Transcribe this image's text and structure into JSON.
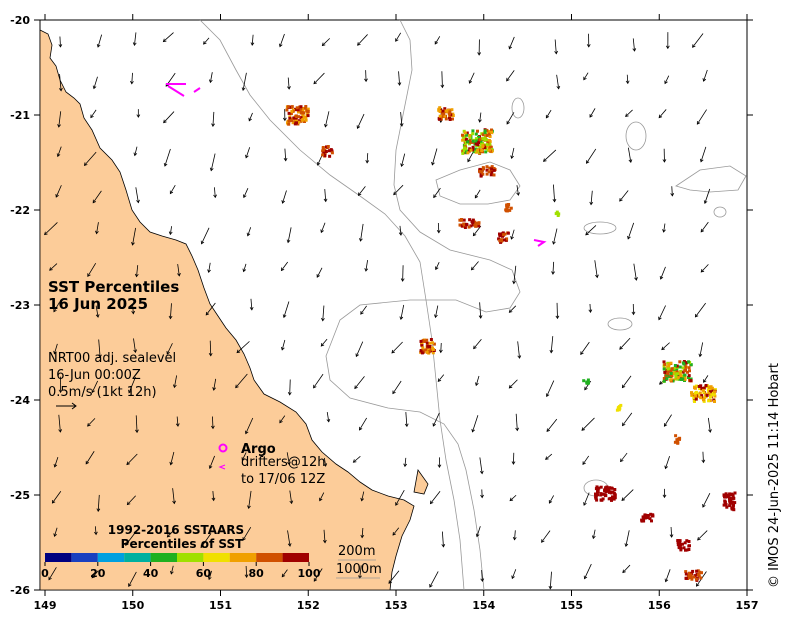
{
  "map": {
    "title_line1": "SST Percentiles",
    "title_line2": "16 Jun 2025",
    "current_line1": "NRT00 adj. sealevel",
    "current_line2": "16-Jun 00:00Z",
    "current_line3": "0.5m/s (1kt 12h)",
    "argo_label": "Argo",
    "drifter_line1": "drifters@12h",
    "drifter_line2": "to 17/06 12Z",
    "legend_title1": "1992-2016 SSTAARS",
    "legend_title2": "Percentiles of SST",
    "legend_ticks": [
      "0",
      "20",
      "40",
      "60",
      "80",
      "100"
    ],
    "legend_colors": [
      "#000080",
      "#1a40c0",
      "#00a0e0",
      "#00b0a0",
      "#20b020",
      "#a0e000",
      "#f0e000",
      "#f0a000",
      "#d05000",
      "#a00000"
    ],
    "contour_200": "200m",
    "contour_1000": "1000m",
    "credit": "© IMOS 24-Jun-2025 11:14 Hobart",
    "x_ticks": [
      "149",
      "150",
      "151",
      "152",
      "153",
      "154",
      "155",
      "156",
      "157"
    ],
    "y_ticks": [
      "-20",
      "-21",
      "-22",
      "-23",
      "-24",
      "-25",
      "-26"
    ],
    "colors": {
      "land": "#fccc99",
      "argo": "#ff00ff",
      "contour": "#999999"
    }
  }
}
